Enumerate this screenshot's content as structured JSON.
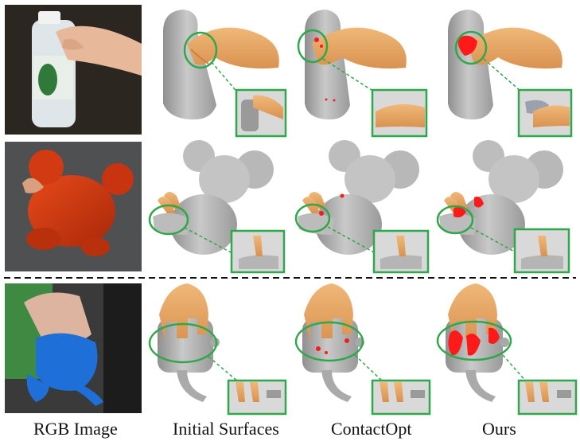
{
  "columns": [
    "RGB Image",
    "Initial Surfaces",
    "ContactOpt",
    "Ours"
  ],
  "rows": [
    {
      "object": "bottle",
      "methods": [
        "initial",
        "contactopt",
        "ours"
      ]
    },
    {
      "object": "toy-mouse",
      "methods": [
        "initial",
        "contactopt",
        "ours"
      ]
    },
    {
      "object": "teapot",
      "methods": [
        "initial",
        "contactopt",
        "ours"
      ]
    }
  ],
  "colors": {
    "highlight_circle": "#2ea84a",
    "contact": "#ff1a1a",
    "mesh": "#b8b8b8",
    "hand": "#e8a868"
  }
}
